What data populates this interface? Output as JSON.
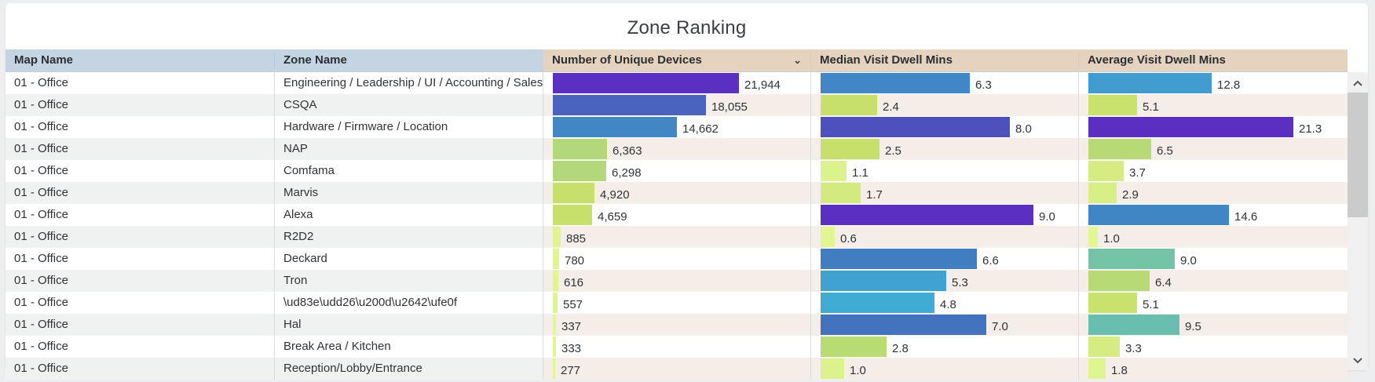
{
  "title": "Zone Ranking",
  "columns": {
    "map": "Map Name",
    "zone": "Zone Name",
    "devices": "Number of Unique Devices",
    "median": "Median Visit Dwell Mins",
    "average": "Average Visit Dwell Mins"
  },
  "sort_icon": "chevron-down",
  "colors": {
    "header_dimension": "#c4d4e2",
    "header_measure": "#e5d2bf",
    "row_alt_measure": "#f5ede7",
    "row_alt_dimension": "#f0f1f1"
  },
  "rows": [
    {
      "map": "01 - Office",
      "zone": "Engineering / Leadership / UI / Accounting / Sales",
      "devices": 21944,
      "devices_label": "21,944",
      "devices_color": "#5a2fc2",
      "median": 6.3,
      "median_label": "6.3",
      "median_color": "#4186c6",
      "average": 12.8,
      "average_label": "12.8",
      "average_color": "#419dd0"
    },
    {
      "map": "01 - Office",
      "zone": "CSQA",
      "devices": 18055,
      "devices_label": "18,055",
      "devices_color": "#4a63be",
      "median": 2.4,
      "median_label": "2.4",
      "median_color": "#c7e06c",
      "average": 5.1,
      "average_label": "5.1",
      "average_color": "#c9e16d"
    },
    {
      "map": "01 - Office",
      "zone": "Hardware / Firmware / Location",
      "devices": 14662,
      "devices_label": "14,662",
      "devices_color": "#4187c6",
      "median": 8.0,
      "median_label": "8.0",
      "median_color": "#4e50be",
      "average": 21.3,
      "average_label": "21.3",
      "average_color": "#5a2fc2"
    },
    {
      "map": "01 - Office",
      "zone": "NAP",
      "devices": 6363,
      "devices_label": "6,363",
      "devices_color": "#b2d879",
      "median": 2.5,
      "median_label": "2.5",
      "median_color": "#c7e06c",
      "average": 6.5,
      "average_label": "6.5",
      "average_color": "#b7da77"
    },
    {
      "map": "01 - Office",
      "zone": "Comfama",
      "devices": 6298,
      "devices_label": "6,298",
      "devices_color": "#b2d879",
      "median": 1.1,
      "median_label": "1.1",
      "median_color": "#dcf28d",
      "average": 3.7,
      "average_label": "3.7",
      "average_color": "#d6ec83"
    },
    {
      "map": "01 - Office",
      "zone": "Marvis",
      "devices": 4920,
      "devices_label": "4,920",
      "devices_color": "#c7e06c",
      "median": 1.7,
      "median_label": "1.7",
      "median_color": "#d3ea7e",
      "average": 2.9,
      "average_label": "2.9",
      "average_color": "#d8ee86"
    },
    {
      "map": "01 - Office",
      "zone": "Alexa",
      "devices": 4659,
      "devices_label": "4,659",
      "devices_color": "#c7e06c",
      "median": 9.0,
      "median_label": "9.0",
      "median_color": "#5a2fc2",
      "average": 14.6,
      "average_label": "14.6",
      "average_color": "#4186c4"
    },
    {
      "map": "01 - Office",
      "zone": "R2D2",
      "devices": 885,
      "devices_label": "885",
      "devices_color": "#dff58f",
      "median": 0.6,
      "median_label": "0.6",
      "median_color": "#e1f690",
      "average": 1.0,
      "average_label": "1.0",
      "average_color": "#e2f792"
    },
    {
      "map": "01 - Office",
      "zone": "Deckard",
      "devices": 780,
      "devices_label": "780",
      "devices_color": "#dff58f",
      "median": 6.6,
      "median_label": "6.6",
      "median_color": "#407dc1",
      "average": 9.0,
      "average_label": "9.0",
      "average_color": "#75c3a6"
    },
    {
      "map": "01 - Office",
      "zone": "Tron",
      "devices": 616,
      "devices_label": "616",
      "devices_color": "#dff58f",
      "median": 5.3,
      "median_label": "5.3",
      "median_color": "#40a2d1",
      "average": 6.4,
      "average_label": "6.4",
      "average_color": "#b7da77"
    },
    {
      "map": "01 - Office",
      "zone": "\\ud83e\\udd26\\u200d\\u2642\\ufe0f",
      "devices": 557,
      "devices_label": "557",
      "devices_color": "#dff58f",
      "median": 4.8,
      "median_label": "4.8",
      "median_color": "#40acd3",
      "average": 5.1,
      "average_label": "5.1",
      "average_color": "#c9e16d"
    },
    {
      "map": "01 - Office",
      "zone": "Hal",
      "devices": 337,
      "devices_label": "337",
      "devices_color": "#e2f792",
      "median": 7.0,
      "median_label": "7.0",
      "median_color": "#4372bf",
      "average": 9.5,
      "average_label": "9.5",
      "average_color": "#68bfb0"
    },
    {
      "map": "01 - Office",
      "zone": "Break Area / Kitchen",
      "devices": 333,
      "devices_label": "333",
      "devices_color": "#e2f792",
      "median": 2.8,
      "median_label": "2.8",
      "median_color": "#b9dc72",
      "average": 3.3,
      "average_label": "3.3",
      "average_color": "#d6ec83"
    },
    {
      "map": "01 - Office",
      "zone": "Reception/Lobby/Entrance",
      "devices": 277,
      "devices_label": "277",
      "devices_color": "#e2f792",
      "median": 1.0,
      "median_label": "1.0",
      "median_color": "#dcf28d",
      "average": 1.8,
      "average_label": "1.8",
      "average_color": "#dff58f"
    }
  ],
  "scrollbar": {
    "up_icon": "^",
    "down_icon": "v"
  }
}
